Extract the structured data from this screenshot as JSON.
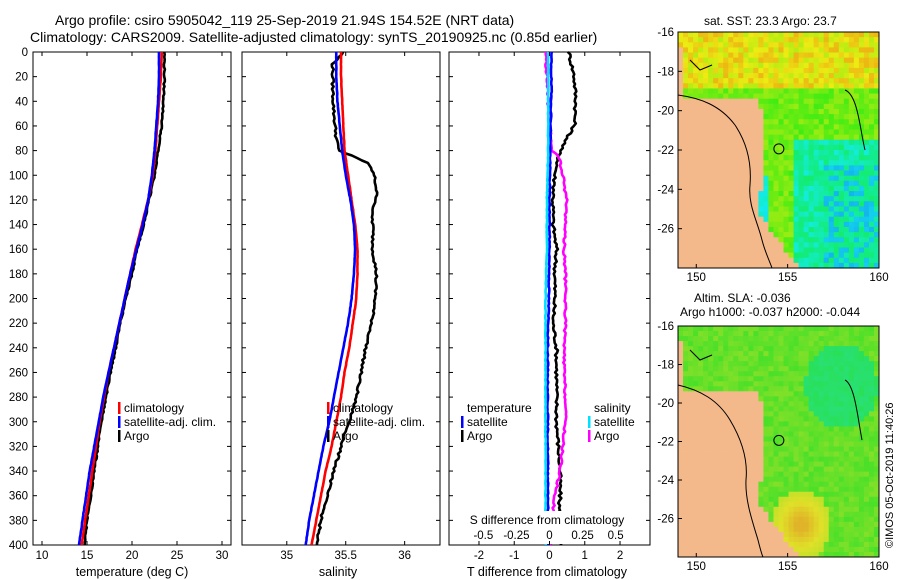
{
  "header": {
    "title_line1": "Argo profile: csiro 5905042_119 25-Sep-2019 21.94S 154.52E (NRT data)",
    "title_line2": "Climatology: CARS2009. Satellite-adjusted climatology: synTS_20190925.nc (0.85d earlier)"
  },
  "colors": {
    "climatology": "#ff0000",
    "satellite": "#0000ff",
    "argo": "#000000",
    "s_satellite": "#00e0ff",
    "s_argo": "#ff00ff",
    "land": "#f4b98a"
  },
  "chart_data": [
    {
      "id": "temperature",
      "type": "line",
      "xlabel": "temperature (deg C)",
      "ylabel": "",
      "xlim": [
        9,
        31
      ],
      "ylim": [
        400,
        0
      ],
      "xticks": [
        "10",
        "15",
        "20",
        "25",
        "30"
      ],
      "xtick_values": [
        10,
        15,
        20,
        25,
        30
      ],
      "yticks": [
        "0",
        "20",
        "40",
        "60",
        "80",
        "100",
        "120",
        "140",
        "160",
        "180",
        "200",
        "220",
        "240",
        "260",
        "280",
        "300",
        "320",
        "340",
        "360",
        "380",
        "400"
      ],
      "ytick_values": [
        0,
        20,
        40,
        60,
        80,
        100,
        120,
        140,
        160,
        180,
        200,
        220,
        240,
        260,
        280,
        300,
        320,
        340,
        360,
        380,
        400
      ],
      "legend": [
        "climatology",
        "satellite-adj. clim.",
        "Argo"
      ],
      "series": [
        {
          "name": "climatology",
          "color": "#ff0000",
          "depth": [
            0,
            20,
            40,
            60,
            80,
            100,
            120,
            140,
            160,
            180,
            200,
            220,
            240,
            260,
            280,
            300,
            320,
            340,
            360,
            380,
            400
          ],
          "values": [
            23.3,
            23.2,
            23.0,
            22.8,
            22.6,
            22.3,
            21.8,
            21.1,
            20.4,
            19.8,
            19.2,
            18.6,
            18.0,
            17.4,
            16.9,
            16.4,
            16.0,
            15.6,
            15.2,
            14.8,
            14.4
          ]
        },
        {
          "name": "satellite-adj. clim.",
          "color": "#0000ff",
          "depth": [
            0,
            20,
            40,
            60,
            80,
            100,
            120,
            140,
            160,
            180,
            200,
            220,
            240,
            260,
            280,
            300,
            320,
            340,
            360,
            380,
            400
          ],
          "values": [
            23.0,
            23.0,
            22.9,
            22.7,
            22.5,
            22.2,
            21.8,
            21.2,
            20.5,
            19.8,
            19.2,
            18.6,
            18.0,
            17.4,
            16.8,
            16.3,
            15.8,
            15.3,
            14.9,
            14.5,
            14.1
          ]
        },
        {
          "name": "Argo",
          "color": "#000000",
          "depth": [
            0,
            20,
            40,
            60,
            80,
            100,
            120,
            140,
            160,
            180,
            200,
            220,
            240,
            260,
            280,
            300,
            320,
            340,
            360,
            380,
            400
          ],
          "values": [
            23.6,
            23.6,
            23.5,
            23.3,
            22.9,
            22.5,
            21.9,
            21.3,
            20.6,
            20.0,
            19.3,
            18.7,
            18.2,
            17.6,
            17.1,
            16.6,
            16.2,
            15.8,
            15.4,
            15.0,
            14.7
          ]
        }
      ]
    },
    {
      "id": "salinity",
      "type": "line",
      "xlabel": "salinity",
      "ylabel": "",
      "xlim": [
        34.62,
        36.3
      ],
      "ylim": [
        400,
        0
      ],
      "xticks": [
        "35",
        "35.5",
        "36"
      ],
      "xtick_values": [
        35,
        35.5,
        36
      ],
      "legend": [
        "climatology",
        "satellite-adj. clim.",
        "Argo"
      ],
      "series": [
        {
          "name": "climatology",
          "color": "#ff0000",
          "depth": [
            0,
            20,
            40,
            60,
            80,
            100,
            120,
            140,
            160,
            180,
            200,
            220,
            240,
            260,
            280,
            300,
            320,
            340,
            360,
            380,
            400
          ],
          "values": [
            35.46,
            35.46,
            35.47,
            35.48,
            35.49,
            35.52,
            35.55,
            35.58,
            35.6,
            35.6,
            35.59,
            35.56,
            35.53,
            35.49,
            35.46,
            35.42,
            35.38,
            35.33,
            35.29,
            35.25,
            35.21
          ]
        },
        {
          "name": "satellite-adj. clim.",
          "color": "#0000ff",
          "depth": [
            0,
            20,
            40,
            60,
            80,
            100,
            120,
            140,
            160,
            180,
            200,
            220,
            240,
            260,
            280,
            300,
            320,
            340,
            360,
            380,
            400
          ],
          "values": [
            35.42,
            35.42,
            35.43,
            35.45,
            35.47,
            35.5,
            35.54,
            35.57,
            35.58,
            35.57,
            35.55,
            35.52,
            35.48,
            35.44,
            35.4,
            35.36,
            35.31,
            35.27,
            35.23,
            35.19,
            35.16
          ]
        },
        {
          "name": "Argo",
          "color": "#000000",
          "depth": [
            0,
            10,
            30,
            50,
            70,
            80,
            85,
            90,
            95,
            100,
            110,
            120,
            130,
            140,
            160,
            180,
            200,
            220,
            240,
            260,
            280,
            300,
            320,
            340,
            360,
            380,
            400
          ],
          "values": [
            35.48,
            35.39,
            35.39,
            35.4,
            35.42,
            35.44,
            35.58,
            35.68,
            35.72,
            35.74,
            35.76,
            35.76,
            35.72,
            35.73,
            35.73,
            35.76,
            35.75,
            35.72,
            35.67,
            35.63,
            35.59,
            35.53,
            35.46,
            35.4,
            35.34,
            35.29,
            35.25
          ]
        }
      ]
    },
    {
      "id": "differences",
      "type": "line",
      "xlabel": "T difference from climatology",
      "xlabel_top": "S difference from climatology",
      "xlim": [
        -2.85,
        2.85
      ],
      "ylim": [
        400,
        0
      ],
      "xticks": [
        "-2",
        "-1",
        "0",
        "1",
        "2"
      ],
      "xtick_values": [
        -2,
        -1,
        0,
        1,
        2
      ],
      "s_xticks": [
        "-0.5",
        "-0.25",
        "0",
        "0.25",
        "0.5"
      ],
      "s_xtick_values": [
        -0.5,
        -0.25,
        0,
        0.25,
        0.5
      ],
      "legend_temperature_title": "temperature",
      "legend_salinity_title": "salinity",
      "legend_temperature": [
        "satellite",
        "Argo"
      ],
      "legend_salinity": [
        "satellite",
        "Argo"
      ],
      "series": [
        {
          "name": "T satellite",
          "unit": "deg C",
          "color": "#0000ff",
          "depth": [
            0,
            40,
            80,
            120,
            160,
            200,
            240,
            280,
            320,
            360,
            400
          ],
          "values": [
            0.05,
            0.05,
            0.02,
            0.0,
            0.0,
            -0.02,
            -0.05,
            -0.05,
            -0.05,
            -0.04,
            -0.05
          ]
        },
        {
          "name": "T Argo",
          "unit": "deg C",
          "color": "#000000",
          "depth": [
            0,
            20,
            40,
            60,
            80,
            100,
            120,
            140,
            160,
            180,
            200,
            220,
            240,
            260,
            280,
            300,
            320,
            340,
            360,
            380,
            400
          ],
          "values": [
            0.55,
            0.7,
            0.75,
            0.7,
            0.3,
            0.15,
            0.1,
            0.1,
            0.2,
            0.15,
            0.15,
            0.1,
            0.2,
            0.2,
            0.2,
            0.2,
            0.25,
            0.3,
            0.3,
            0.25,
            0.3
          ]
        },
        {
          "name": "S satellite",
          "unit": "psu",
          "color": "#00e0ff",
          "depth": [
            0,
            40,
            80,
            120,
            160,
            200,
            240,
            280,
            320,
            360,
            400
          ],
          "values": [
            -0.01,
            -0.01,
            -0.01,
            -0.02,
            -0.02,
            -0.03,
            -0.03,
            -0.03,
            -0.03,
            -0.03,
            -0.03
          ]
        },
        {
          "name": "S Argo",
          "unit": "psu",
          "color": "#ff00ff",
          "depth": [
            0,
            20,
            40,
            60,
            80,
            85,
            95,
            100,
            120,
            140,
            160,
            180,
            200,
            220,
            240,
            260,
            280,
            300,
            320,
            340,
            360,
            380,
            400
          ],
          "values": [
            -0.03,
            -0.02,
            -0.01,
            0.0,
            0.02,
            0.07,
            0.09,
            0.1,
            0.13,
            0.12,
            0.11,
            0.12,
            0.12,
            0.12,
            0.11,
            0.11,
            0.12,
            0.12,
            0.1,
            0.08,
            0.04,
            0.02,
            0.01
          ]
        }
      ]
    }
  ],
  "maps": {
    "sst": {
      "title": "sat. SST: 23.3 Argo: 23.7",
      "xticks": [
        "150",
        "155",
        "160"
      ],
      "xtick_values": [
        150,
        155,
        160
      ],
      "yticks": [
        "-16",
        "-18",
        "-20",
        "-22",
        "-24",
        "-26"
      ],
      "ytick_values": [
        -16,
        -18,
        -20,
        -22,
        -24,
        -26
      ],
      "lon_range": [
        149,
        160
      ],
      "lat_range": [
        -28,
        -16
      ],
      "argo_position": [
        154.52,
        -21.94
      ]
    },
    "sla": {
      "title_line1": "Altim. SLA: -0.036",
      "title_line2": "Argo h1000: -0.037 h2000: -0.044",
      "xticks": [
        "150",
        "155",
        "160"
      ],
      "xtick_values": [
        150,
        155,
        160
      ],
      "yticks": [
        "-16",
        "-18",
        "-20",
        "-22",
        "-24",
        "-26"
      ],
      "ytick_values": [
        -16,
        -18,
        -20,
        -22,
        -24,
        -26
      ],
      "lon_range": [
        149,
        160
      ],
      "lat_range": [
        -28,
        -16
      ],
      "argo_position": [
        154.52,
        -21.94
      ]
    }
  },
  "credit": "©IMOS 05-Oct-2019 11:40:26"
}
